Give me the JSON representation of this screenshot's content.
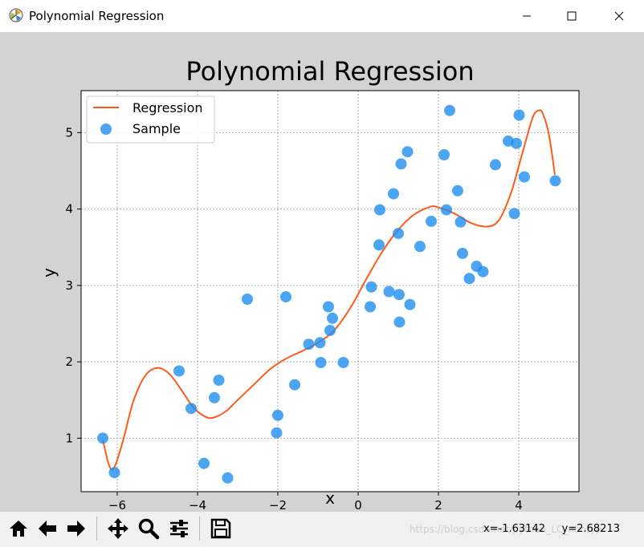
{
  "window": {
    "title": "Polynomial Regression",
    "icon": "matplotlib-icon",
    "controls": [
      "minimize-icon",
      "maximize-icon",
      "close-icon"
    ]
  },
  "chart_data": {
    "type": "scatter",
    "title": "Polynomial Regression",
    "xlabel": "x",
    "ylabel": "y",
    "xlim": [
      -6.9,
      5.5
    ],
    "ylim": [
      0.3,
      5.55
    ],
    "xticks": [
      -6,
      -4,
      -2,
      0,
      2,
      4
    ],
    "xtick_labels": [
      "−6",
      "−4",
      "−2",
      "0",
      "2",
      "4"
    ],
    "yticks": [
      1,
      2,
      3,
      4,
      5
    ],
    "ytick_labels": [
      "1",
      "2",
      "3",
      "4",
      "5"
    ],
    "grid": true,
    "legend": {
      "position": "top-left",
      "entries": [
        "Regression",
        "Sample"
      ]
    },
    "colors": {
      "regression": "#ff5a1a",
      "sample": "#1f8ff0"
    },
    "series": [
      {
        "name": "Sample",
        "kind": "scatter",
        "points": [
          [
            -6.36,
            1.0
          ],
          [
            -6.07,
            0.55
          ],
          [
            -4.46,
            1.88
          ],
          [
            -4.16,
            1.39
          ],
          [
            -3.84,
            0.67
          ],
          [
            -3.58,
            1.53
          ],
          [
            -3.47,
            1.76
          ],
          [
            -3.25,
            0.48
          ],
          [
            -2.76,
            2.82
          ],
          [
            -2.03,
            1.07
          ],
          [
            -2.0,
            1.3
          ],
          [
            -1.8,
            2.85
          ],
          [
            -1.58,
            1.7
          ],
          [
            -1.23,
            2.23
          ],
          [
            -0.95,
            2.25
          ],
          [
            -0.93,
            1.99
          ],
          [
            -0.74,
            2.72
          ],
          [
            -0.7,
            2.41
          ],
          [
            -0.64,
            2.57
          ],
          [
            -0.37,
            1.99
          ],
          [
            0.3,
            2.72
          ],
          [
            0.33,
            2.98
          ],
          [
            0.52,
            3.53
          ],
          [
            0.54,
            3.99
          ],
          [
            0.77,
            2.92
          ],
          [
            0.88,
            4.2
          ],
          [
            1.0,
            3.68
          ],
          [
            1.02,
            2.88
          ],
          [
            1.03,
            2.52
          ],
          [
            1.07,
            4.59
          ],
          [
            1.23,
            4.75
          ],
          [
            1.29,
            2.75
          ],
          [
            1.54,
            3.51
          ],
          [
            1.82,
            3.84
          ],
          [
            2.14,
            4.71
          ],
          [
            2.2,
            3.99
          ],
          [
            2.28,
            5.29
          ],
          [
            2.48,
            4.24
          ],
          [
            2.55,
            3.83
          ],
          [
            2.6,
            3.42
          ],
          [
            2.77,
            3.09
          ],
          [
            2.95,
            3.25
          ],
          [
            3.11,
            3.18
          ],
          [
            3.42,
            4.58
          ],
          [
            3.74,
            4.89
          ],
          [
            3.89,
            3.94
          ],
          [
            3.94,
            4.86
          ],
          [
            4.01,
            5.23
          ],
          [
            4.14,
            4.42
          ],
          [
            4.91,
            4.37
          ]
        ]
      },
      {
        "name": "Regression",
        "kind": "line",
        "points": [
          [
            -6.36,
            0.98
          ],
          [
            -6.2,
            0.64
          ],
          [
            -6.07,
            0.62
          ],
          [
            -5.85,
            0.98
          ],
          [
            -5.6,
            1.48
          ],
          [
            -5.3,
            1.82
          ],
          [
            -5.0,
            1.92
          ],
          [
            -4.7,
            1.84
          ],
          [
            -4.4,
            1.63
          ],
          [
            -4.1,
            1.4
          ],
          [
            -3.8,
            1.28
          ],
          [
            -3.6,
            1.27
          ],
          [
            -3.3,
            1.35
          ],
          [
            -3.0,
            1.5
          ],
          [
            -2.6,
            1.7
          ],
          [
            -2.2,
            1.9
          ],
          [
            -1.8,
            2.04
          ],
          [
            -1.4,
            2.14
          ],
          [
            -1.0,
            2.25
          ],
          [
            -0.6,
            2.41
          ],
          [
            -0.2,
            2.7
          ],
          [
            0.2,
            3.08
          ],
          [
            0.6,
            3.44
          ],
          [
            1.0,
            3.73
          ],
          [
            1.4,
            3.93
          ],
          [
            1.8,
            4.03
          ],
          [
            2.0,
            4.02
          ],
          [
            2.4,
            3.94
          ],
          [
            2.8,
            3.82
          ],
          [
            3.2,
            3.77
          ],
          [
            3.5,
            3.85
          ],
          [
            3.8,
            4.2
          ],
          [
            4.1,
            4.75
          ],
          [
            4.35,
            5.2
          ],
          [
            4.5,
            5.29
          ],
          [
            4.6,
            5.25
          ],
          [
            4.75,
            4.98
          ],
          [
            4.9,
            4.45
          ]
        ]
      }
    ]
  },
  "toolbar": {
    "buttons": [
      "home-icon",
      "back-icon",
      "forward-icon",
      "pan-icon",
      "zoom-icon",
      "configure-subplots-icon",
      "save-icon"
    ],
    "coords": "x=-1.63142     y=2.68213",
    "watermark": "https://blog.csdn.net/python_LC_nohtyp"
  }
}
